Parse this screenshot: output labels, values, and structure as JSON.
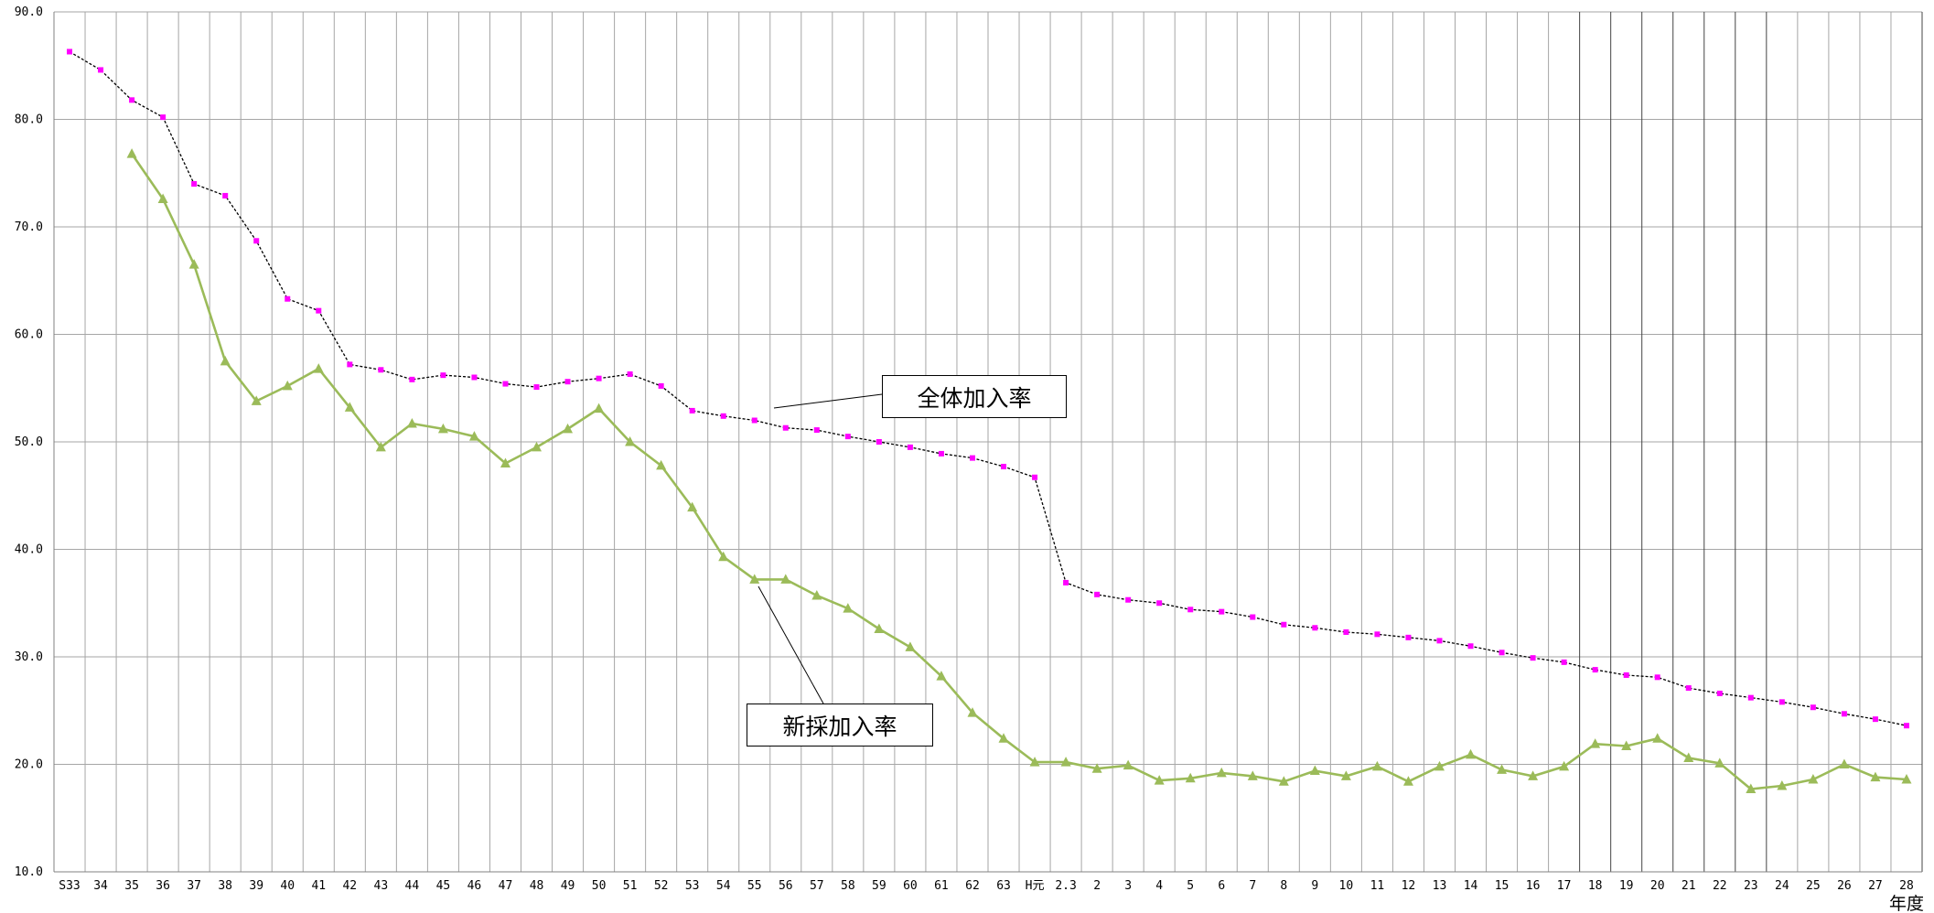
{
  "chart_data": {
    "type": "line",
    "categories": [
      "S33",
      "34",
      "35",
      "36",
      "37",
      "38",
      "39",
      "40",
      "41",
      "42",
      "43",
      "44",
      "45",
      "46",
      "47",
      "48",
      "49",
      "50",
      "51",
      "52",
      "53",
      "54",
      "55",
      "56",
      "57",
      "58",
      "59",
      "60",
      "61",
      "62",
      "63",
      "H元",
      "2.3",
      "2",
      "3",
      "4",
      "5",
      "6",
      "7",
      "8",
      "9",
      "10",
      "11",
      "12",
      "13",
      "14",
      "15",
      "16",
      "17",
      "18",
      "19",
      "20",
      "21",
      "22",
      "23",
      "24",
      "25",
      "26",
      "27",
      "28"
    ],
    "xlabel": "年度",
    "ylim": [
      10,
      90
    ],
    "yticks": [
      "10.0",
      "20.0",
      "30.0",
      "40.0",
      "50.0",
      "60.0",
      "70.0",
      "80.0",
      "90.0"
    ],
    "grid": true,
    "series": [
      {
        "name": "全体加入率",
        "style": "dashed",
        "color": "#000000",
        "marker": "square",
        "marker_color": "#ff00ff",
        "values": [
          86.3,
          84.6,
          81.8,
          80.2,
          74.0,
          72.9,
          68.7,
          63.3,
          62.2,
          57.2,
          56.7,
          55.8,
          56.2,
          56.0,
          55.4,
          55.1,
          55.6,
          55.9,
          56.3,
          55.2,
          52.9,
          52.4,
          52.0,
          51.3,
          51.1,
          50.5,
          50.0,
          49.5,
          48.9,
          48.5,
          47.7,
          46.7,
          36.9,
          35.8,
          35.3,
          35.0,
          34.4,
          34.2,
          33.7,
          33.0,
          32.7,
          32.3,
          32.1,
          31.8,
          31.5,
          31.0,
          30.4,
          29.9,
          29.5,
          28.8,
          28.3,
          28.1,
          27.1,
          26.6,
          26.2,
          25.8,
          25.3,
          24.7,
          24.2,
          23.6
        ]
      },
      {
        "name": "新採加入率",
        "style": "solid",
        "color": "#9bbb59",
        "marker": "triangle",
        "values": [
          null,
          null,
          76.8,
          72.6,
          66.5,
          57.5,
          53.8,
          55.2,
          56.8,
          53.2,
          49.5,
          51.7,
          51.2,
          50.5,
          48.0,
          49.5,
          51.2,
          53.1,
          50.0,
          47.8,
          43.9,
          39.3,
          37.2,
          37.2,
          35.7,
          34.5,
          32.6,
          30.9,
          28.2,
          24.8,
          22.4,
          20.2,
          20.2,
          19.6,
          19.9,
          18.5,
          18.7,
          19.2,
          18.9,
          18.4,
          19.4,
          18.9,
          19.8,
          18.4,
          19.8,
          20.9,
          19.5,
          18.9,
          19.8,
          21.9,
          21.7,
          22.4,
          20.6,
          20.1,
          17.7,
          18.0,
          18.6,
          20.0,
          18.8,
          18.6
        ]
      }
    ]
  }
}
